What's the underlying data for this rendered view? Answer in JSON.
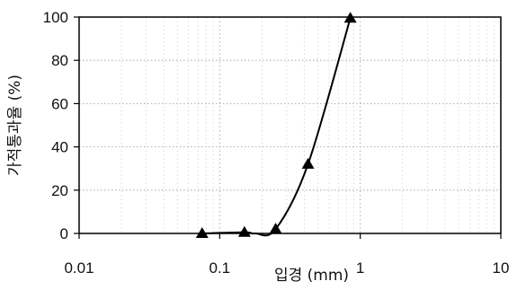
{
  "chart_data": {
    "type": "scatter",
    "xlabel": "입경 (mm)",
    "ylabel": "가적통과율 (%)",
    "x_scale": "log",
    "xlim": [
      0.01,
      10
    ],
    "ylim": [
      0,
      100
    ],
    "x_ticks": [
      0.01,
      0.1,
      1,
      10
    ],
    "x_tick_labels": [
      "0.01",
      "0.1",
      "1",
      "10"
    ],
    "y_ticks": [
      0,
      20,
      40,
      60,
      80,
      100
    ],
    "y_tick_labels": [
      "0",
      "20",
      "40",
      "60",
      "80",
      "100"
    ],
    "grid": true,
    "legend": "none",
    "marker": "triangle",
    "line": "smooth",
    "color": "#000000",
    "series": [
      {
        "x": [
          0.075,
          0.15,
          0.25,
          0.425,
          0.85
        ],
        "y": [
          0,
          0.5,
          2,
          32,
          99.5
        ]
      }
    ]
  }
}
